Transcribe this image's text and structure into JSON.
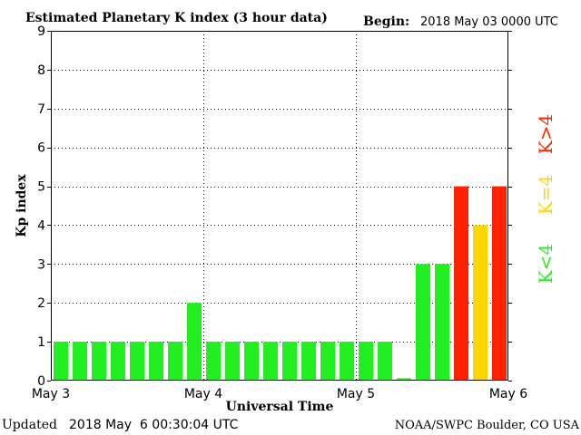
{
  "header": {
    "title": "Estimated Planetary K index (3 hour data)",
    "begin_label": "Begin:",
    "begin_value": "2018 May 03 0000 UTC"
  },
  "footer": {
    "updated_label": "Updated",
    "updated_value": "2018 May  6 00:30:04 UTC",
    "source": "NOAA/SWPC Boulder, CO USA"
  },
  "legend": {
    "low": {
      "label": "K<4",
      "color": "#22ee22"
    },
    "mid": {
      "label": "K=4",
      "color": "#ffd700"
    },
    "high": {
      "label": "K>4",
      "color": "#ff2200"
    }
  },
  "chart_data": {
    "type": "bar",
    "title": "Estimated Planetary K index (3 hour data)",
    "xlabel": "Universal Time",
    "ylabel": "Kp index",
    "ylim": [
      0,
      9
    ],
    "yticks": [
      "0",
      "1",
      "2",
      "3",
      "4",
      "5",
      "6",
      "7",
      "8",
      "9"
    ],
    "xticks": [
      "May 3",
      "May 4",
      "May 5",
      "May 6"
    ],
    "grid": true,
    "bars_per_day": 8,
    "values": [
      1,
      1,
      1,
      1,
      1,
      1,
      1,
      2,
      1,
      1,
      1,
      1,
      1,
      1,
      1,
      1,
      1,
      1,
      0,
      3,
      3,
      5,
      4,
      5
    ]
  }
}
